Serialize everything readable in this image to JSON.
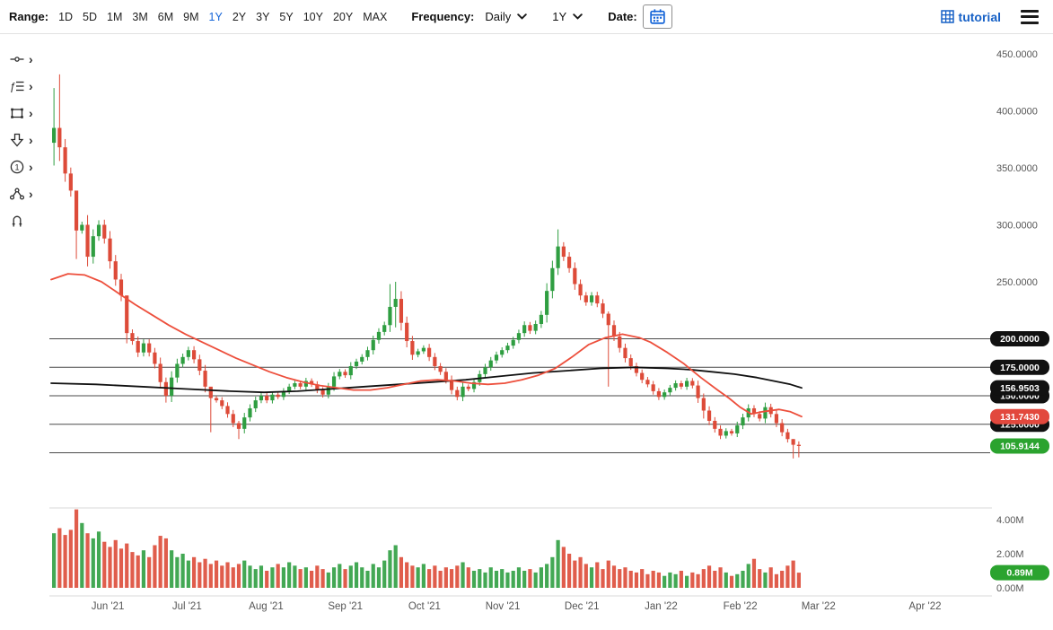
{
  "toolbar": {
    "range_label": "Range:",
    "ranges": [
      "1D",
      "5D",
      "1M",
      "3M",
      "6M",
      "9M",
      "1Y",
      "2Y",
      "3Y",
      "5Y",
      "10Y",
      "20Y",
      "MAX"
    ],
    "active_range": "1Y",
    "frequency_label": "Frequency:",
    "frequency_value": "Daily",
    "period_value": "1Y",
    "date_label": "Date:",
    "brand": "tutorial"
  },
  "drawing_tools": [
    "trend-line",
    "fibonacci-levels",
    "shape",
    "arrow-marker",
    "number-label",
    "pattern",
    "magnet"
  ],
  "chart_data": {
    "type": "candlestick",
    "title": "",
    "x_axis": "dates May 2021 - April 2022",
    "ylim": [
      50,
      455
    ],
    "grid": false,
    "colors": {
      "up": "#2f9e41",
      "down": "#dd4b39",
      "ma_fast": "#ed4f3c",
      "ma_slow": "#111111",
      "badge_black": "#111111",
      "badge_red": "#e2483d",
      "badge_green": "#2ba32f",
      "accent": "#1565d8"
    },
    "y_ticks": [
      [
        450,
        "450.0000"
      ],
      [
        400,
        "400.0000"
      ],
      [
        350,
        "350.0000"
      ],
      [
        300,
        "300.0000"
      ],
      [
        250,
        "250.0000"
      ]
    ],
    "x_labels": [
      {
        "label": "Jun '21",
        "pos": 0.062
      },
      {
        "label": "Jul '21",
        "pos": 0.146
      },
      {
        "label": "Aug '21",
        "pos": 0.23
      },
      {
        "label": "Sep '21",
        "pos": 0.314
      },
      {
        "label": "Oct '21",
        "pos": 0.398
      },
      {
        "label": "Nov '21",
        "pos": 0.481
      },
      {
        "label": "Dec '21",
        "pos": 0.565
      },
      {
        "label": "Jan '22",
        "pos": 0.649
      },
      {
        "label": "Feb '22",
        "pos": 0.733
      },
      {
        "label": "Mar '22",
        "pos": 0.816
      },
      {
        "label": "Apr '22",
        "pos": 0.929
      }
    ],
    "horizontal_lines": [
      200,
      175,
      150,
      125,
      100
    ],
    "price": {
      "first_open": 372,
      "closes": [
        385,
        368,
        345,
        330,
        295,
        300,
        272,
        290,
        300,
        288,
        268,
        252,
        238,
        205,
        198,
        188,
        196,
        188,
        178,
        162,
        150,
        166,
        178,
        184,
        190,
        182,
        172,
        158,
        148,
        146,
        141,
        134,
        126,
        121,
        131,
        139,
        146,
        150,
        146,
        151,
        149,
        154,
        158,
        161,
        158,
        163,
        160,
        155,
        151,
        158,
        167,
        171,
        168,
        176,
        180,
        184,
        190,
        199,
        206,
        212,
        228,
        235,
        214,
        198,
        186,
        189,
        192,
        184,
        176,
        171,
        164,
        155,
        149,
        158,
        156,
        162,
        169,
        175,
        181,
        186,
        190,
        194,
        199,
        205,
        212,
        207,
        213,
        221,
        242,
        262,
        281,
        272,
        262,
        248,
        238,
        232,
        238,
        231,
        222,
        212,
        202,
        192,
        183,
        176,
        170,
        164,
        160,
        154,
        149,
        153,
        157,
        161,
        158,
        163,
        159,
        148,
        137,
        128,
        121,
        115,
        119,
        117,
        124,
        131,
        139,
        134,
        130,
        140,
        134,
        126,
        118,
        112,
        107,
        105.91
      ],
      "wicks": {
        "0": [
          420,
          352
        ],
        "1": [
          432,
          356
        ],
        "4": [
          310,
          270
        ],
        "13": [
          228,
          196
        ],
        "20": [
          166,
          144
        ],
        "28": [
          154,
          118
        ],
        "33": [
          128,
          112
        ],
        "60": [
          248,
          206
        ],
        "61": [
          250,
          210
        ],
        "90": [
          296,
          256
        ],
        "99": [
          224,
          158
        ],
        "116": [
          152,
          130
        ],
        "132": [
          112,
          95
        ],
        "133": [
          110,
          96
        ]
      },
      "last_price": "105.9144"
    },
    "ma_fast": {
      "name": "red moving average",
      "last_value": "131.7430",
      "anchors": [
        [
          0,
          252
        ],
        [
          3,
          257
        ],
        [
          6,
          256
        ],
        [
          9,
          250
        ],
        [
          12,
          240
        ],
        [
          15,
          230
        ],
        [
          18,
          221
        ],
        [
          21,
          212
        ],
        [
          24,
          204
        ],
        [
          27,
          197
        ],
        [
          30,
          190
        ],
        [
          33,
          183
        ],
        [
          36,
          177
        ],
        [
          39,
          171
        ],
        [
          42,
          166
        ],
        [
          45,
          162
        ],
        [
          48,
          159
        ],
        [
          51,
          157
        ],
        [
          54,
          155
        ],
        [
          57,
          155
        ],
        [
          60,
          157
        ],
        [
          63,
          160
        ],
        [
          66,
          163
        ],
        [
          69,
          164
        ],
        [
          72,
          163
        ],
        [
          75,
          161
        ],
        [
          78,
          160
        ],
        [
          81,
          161
        ],
        [
          84,
          164
        ],
        [
          87,
          168
        ],
        [
          90,
          174
        ],
        [
          93,
          184
        ],
        [
          96,
          195
        ],
        [
          99,
          201
        ],
        [
          102,
          204
        ],
        [
          105,
          201
        ],
        [
          107,
          197
        ],
        [
          110,
          188
        ],
        [
          113,
          178
        ],
        [
          116,
          166
        ],
        [
          119,
          155
        ],
        [
          121,
          148
        ],
        [
          123,
          140
        ],
        [
          125,
          134
        ],
        [
          127,
          136
        ],
        [
          130,
          138
        ],
        [
          132,
          136
        ],
        [
          134,
          131.74
        ]
      ]
    },
    "ma_slow": {
      "name": "black moving average",
      "last_value": "156.9503",
      "anchors": [
        [
          0,
          161
        ],
        [
          8,
          160
        ],
        [
          16,
          158
        ],
        [
          24,
          156
        ],
        [
          32,
          154
        ],
        [
          38,
          153
        ],
        [
          44,
          154
        ],
        [
          50,
          156
        ],
        [
          56,
          158
        ],
        [
          62,
          160
        ],
        [
          68,
          162
        ],
        [
          74,
          164
        ],
        [
          80,
          167
        ],
        [
          86,
          170
        ],
        [
          92,
          172
        ],
        [
          98,
          174
        ],
        [
          104,
          175
        ],
        [
          110,
          174
        ],
        [
          114,
          173
        ],
        [
          118,
          171
        ],
        [
          122,
          169
        ],
        [
          126,
          166
        ],
        [
          129,
          163
        ],
        [
          132,
          160
        ],
        [
          134,
          156.95
        ]
      ]
    },
    "badges": [
      {
        "text": "150.0000",
        "price": 150,
        "bg": "#111111",
        "partial": true
      },
      {
        "text": "125.0000",
        "price": 125,
        "bg": "#111111",
        "partial": true
      },
      {
        "text": "200.0000",
        "price": 200,
        "bg": "#111111"
      },
      {
        "text": "175.0000",
        "price": 175,
        "bg": "#111111"
      },
      {
        "text": "156.9503",
        "price": 156.95,
        "bg": "#111111"
      },
      {
        "text": "131.7430",
        "price": 131.74,
        "bg": "#e2483d"
      },
      {
        "text": "105.9144",
        "price": 105.91,
        "bg": "#2ba32f"
      }
    ],
    "volume": {
      "ticks": [
        [
          4,
          "4.00M"
        ],
        [
          2,
          "2.00M"
        ],
        [
          0,
          "0.00M"
        ]
      ],
      "badge": {
        "text": "0.89M",
        "value": 0.89,
        "bg": "#2ba32f"
      },
      "values": [
        3.2,
        3.5,
        3.1,
        3.4,
        4.6,
        3.8,
        3.2,
        2.9,
        3.3,
        2.7,
        2.4,
        2.8,
        2.3,
        2.6,
        2.1,
        1.9,
        2.2,
        1.8,
        2.5,
        3.05,
        2.9,
        2.2,
        1.8,
        2.0,
        1.6,
        1.8,
        1.5,
        1.7,
        1.4,
        1.6,
        1.3,
        1.5,
        1.2,
        1.4,
        1.6,
        1.3,
        1.1,
        1.3,
        1.0,
        1.2,
        1.4,
        1.2,
        1.5,
        1.3,
        1.1,
        1.2,
        1.0,
        1.3,
        1.1,
        0.9,
        1.2,
        1.4,
        1.1,
        1.3,
        1.5,
        1.2,
        1.0,
        1.4,
        1.2,
        1.6,
        2.2,
        2.5,
        1.8,
        1.5,
        1.3,
        1.2,
        1.4,
        1.1,
        1.3,
        1.0,
        1.2,
        1.1,
        1.3,
        1.5,
        1.2,
        1.0,
        1.1,
        0.9,
        1.2,
        1.0,
        1.1,
        0.9,
        1.0,
        1.2,
        1.0,
        1.1,
        0.9,
        1.2,
        1.4,
        1.8,
        2.8,
        2.4,
        2.0,
        1.6,
        1.8,
        1.4,
        1.2,
        1.5,
        1.1,
        1.6,
        1.3,
        1.1,
        1.2,
        1.0,
        0.9,
        1.1,
        0.8,
        1.0,
        0.9,
        0.7,
        0.9,
        0.8,
        1.0,
        0.7,
        0.9,
        0.8,
        1.1,
        1.3,
        1.0,
        1.2,
        0.9,
        0.7,
        0.8,
        1.0,
        1.4,
        1.7,
        1.1,
        0.9,
        1.2,
        0.8,
        1.0,
        1.3,
        1.6,
        0.89
      ]
    }
  }
}
